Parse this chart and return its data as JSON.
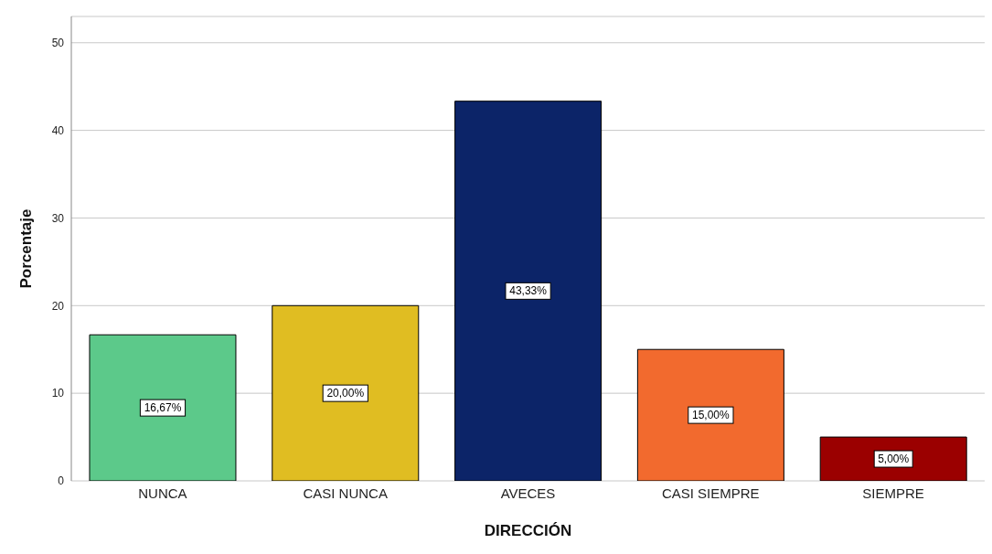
{
  "chart_data": {
    "type": "bar",
    "xlabel": "DIRECCIÓN",
    "ylabel": "Porcentaje",
    "categories": [
      "NUNCA",
      "CASI NUNCA",
      "AVECES",
      "CASI SIEMPRE",
      "SIEMPRE"
    ],
    "values": [
      16.67,
      20.0,
      43.33,
      15.0,
      5.0
    ],
    "colors": [
      "#5cc98a",
      "#e0bd22",
      "#0c2468",
      "#f26a2e",
      "#9b0000"
    ],
    "value_labels": [
      "16,67%",
      "20,00%",
      "43,33%",
      "15,00%",
      "5,00%"
    ],
    "ylim": [
      0,
      53
    ],
    "yticks": [
      0,
      10,
      20,
      30,
      40,
      50
    ],
    "grid": "y"
  }
}
